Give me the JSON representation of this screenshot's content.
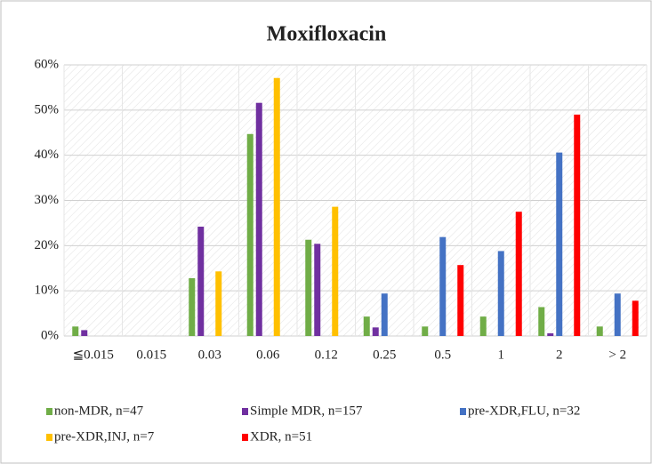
{
  "chart_data": {
    "type": "bar",
    "title": "Moxifloxacin",
    "categories": [
      "≦0.015",
      "0.015",
      "0.03",
      "0.06",
      "0.12",
      "0.25",
      "0.5",
      "1",
      "2",
      "> 2"
    ],
    "series": [
      {
        "name": "non-MDR, n=47",
        "color": "#70ad47",
        "values": [
          2.1,
          0,
          12.8,
          44.7,
          21.3,
          4.3,
          2.1,
          4.3,
          6.4,
          2.1
        ]
      },
      {
        "name": "Simple MDR, n=157",
        "color": "#7030a0",
        "values": [
          1.3,
          0,
          24.2,
          51.6,
          20.4,
          1.9,
          0,
          0,
          0.6,
          0
        ]
      },
      {
        "name": "pre-XDR,FLU, n=32",
        "color": "#4472c4",
        "values": [
          0,
          0,
          0,
          0,
          0,
          9.4,
          21.9,
          18.8,
          40.6,
          9.4
        ]
      },
      {
        "name": "pre-XDR,INJ, n=7",
        "color": "#ffc000",
        "values": [
          0,
          0,
          14.3,
          57.1,
          28.6,
          0,
          0,
          0,
          0,
          0
        ]
      },
      {
        "name": "XDR, n=51",
        "color": "#ff0000",
        "values": [
          0,
          0,
          0,
          0,
          0,
          0,
          15.7,
          27.5,
          49.0,
          7.8
        ]
      }
    ],
    "ylim": [
      0,
      60
    ],
    "yticks": [
      {
        "value": 0,
        "label": "0%"
      },
      {
        "value": 10,
        "label": "10%"
      },
      {
        "value": 20,
        "label": "20%"
      },
      {
        "value": 30,
        "label": "30%"
      },
      {
        "value": 40,
        "label": "40%"
      },
      {
        "value": 50,
        "label": "50%"
      },
      {
        "value": 60,
        "label": "60%"
      }
    ],
    "grid": true,
    "legend": "bottom"
  }
}
